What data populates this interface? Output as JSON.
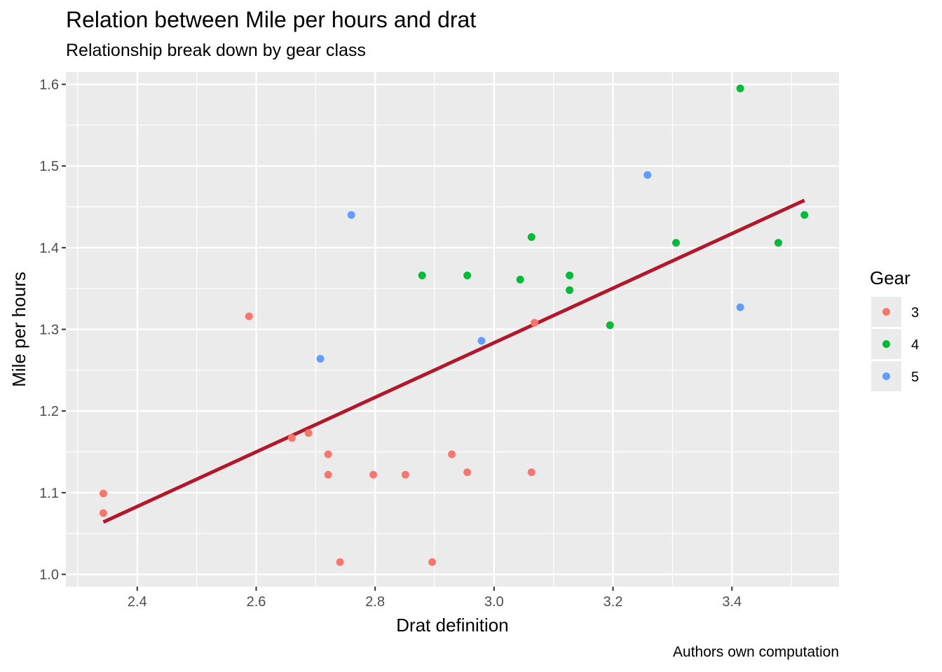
{
  "chart_data": {
    "type": "scatter",
    "title": "Relation between Mile per hours and drat",
    "subtitle": "Relationship break down by gear class",
    "caption": "Authors own computation",
    "xlabel": "Drat definition",
    "ylabel": "Mile per hours",
    "xlim": [
      2.28,
      3.58
    ],
    "ylim": [
      0.985,
      1.615
    ],
    "xticks": [
      "2.4",
      "2.6",
      "2.8",
      "3.0",
      "3.2",
      "3.4"
    ],
    "yticks": [
      "1.0",
      "1.1",
      "1.2",
      "1.3",
      "1.4",
      "1.5",
      "1.6"
    ],
    "grid": true,
    "legend": {
      "title": "Gear",
      "position": "right"
    },
    "series": [
      {
        "name": "3",
        "color": "#F8766D",
        "points": [
          {
            "x": 2.343,
            "y": 1.099
          },
          {
            "x": 2.343,
            "y": 1.075
          },
          {
            "x": 2.588,
            "y": 1.316
          },
          {
            "x": 2.66,
            "y": 1.167
          },
          {
            "x": 2.688,
            "y": 1.173
          },
          {
            "x": 2.721,
            "y": 1.147
          },
          {
            "x": 2.721,
            "y": 1.122
          },
          {
            "x": 2.741,
            "y": 1.015
          },
          {
            "x": 2.797,
            "y": 1.122
          },
          {
            "x": 2.851,
            "y": 1.122
          },
          {
            "x": 2.896,
            "y": 1.015
          },
          {
            "x": 2.929,
            "y": 1.147
          },
          {
            "x": 2.955,
            "y": 1.125
          },
          {
            "x": 3.063,
            "y": 1.125
          },
          {
            "x": 3.068,
            "y": 1.308
          }
        ]
      },
      {
        "name": "4",
        "color": "#00BA38",
        "points": [
          {
            "x": 2.879,
            "y": 1.366
          },
          {
            "x": 2.955,
            "y": 1.366
          },
          {
            "x": 3.044,
            "y": 1.361
          },
          {
            "x": 3.063,
            "y": 1.413
          },
          {
            "x": 3.127,
            "y": 1.366
          },
          {
            "x": 3.127,
            "y": 1.348
          },
          {
            "x": 3.195,
            "y": 1.305
          },
          {
            "x": 3.306,
            "y": 1.406
          },
          {
            "x": 3.414,
            "y": 1.595
          },
          {
            "x": 3.478,
            "y": 1.406
          },
          {
            "x": 3.522,
            "y": 1.44
          }
        ]
      },
      {
        "name": "5",
        "color": "#619CFF",
        "points": [
          {
            "x": 2.708,
            "y": 1.264
          },
          {
            "x": 2.76,
            "y": 1.44
          },
          {
            "x": 2.979,
            "y": 1.286
          },
          {
            "x": 3.258,
            "y": 1.489
          },
          {
            "x": 3.414,
            "y": 1.327
          }
        ]
      }
    ],
    "trendline": {
      "color": "#B2182B",
      "x": [
        2.343,
        3.522
      ],
      "y": [
        1.064,
        1.458
      ]
    }
  }
}
